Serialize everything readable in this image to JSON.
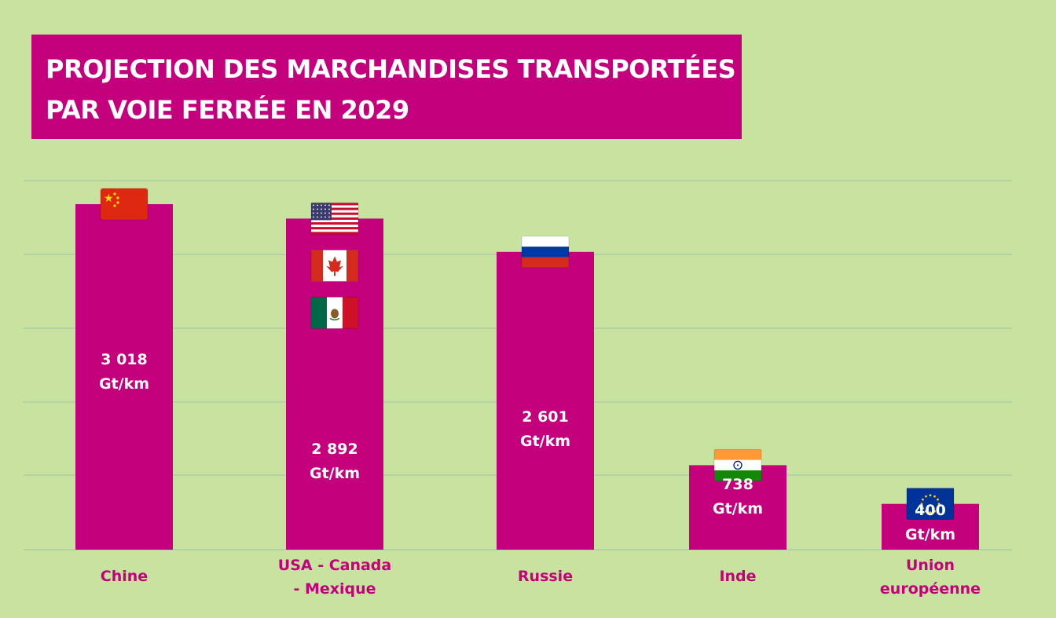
{
  "title": {
    "line1": "PROJECTION DES MARCHANDISES TRANSPORTÉES",
    "line2": "PAR VOIE FERRÉE EN 2029"
  },
  "colors": {
    "background": "#c8e3a0",
    "bar": "#c4007c",
    "grid": "#9fc2a6",
    "value_text": "#ffffff",
    "category_text": "#c4007c"
  },
  "chart_data": {
    "type": "bar",
    "title": "PROJECTION DES MARCHANDISES TRANSPORTÉES PAR VOIE FERRÉE EN 2029",
    "xlabel": "",
    "ylabel": "",
    "grid": true,
    "ylim": [
      0,
      3500
    ],
    "categories": [
      [
        "Chine"
      ],
      [
        "USA - Canada",
        "- Mexique"
      ],
      [
        "Russie"
      ],
      [
        "Inde"
      ],
      [
        "Union",
        "européenne"
      ]
    ],
    "values": [
      3018,
      2892,
      2601,
      738,
      400
    ],
    "value_labels": [
      [
        "3 018",
        "Gt/km"
      ],
      [
        "2 892",
        "Gt/km"
      ],
      [
        "2 601",
        "Gt/km"
      ],
      [
        "738",
        "Gt/km"
      ],
      [
        "400",
        "Gt/km"
      ]
    ],
    "flags": [
      [
        "china-flag"
      ],
      [
        "usa-flag",
        "canada-flag",
        "mexico-flag"
      ],
      [
        "russia-flag"
      ],
      [
        "india-flag"
      ],
      [
        "eu-flag"
      ]
    ]
  }
}
